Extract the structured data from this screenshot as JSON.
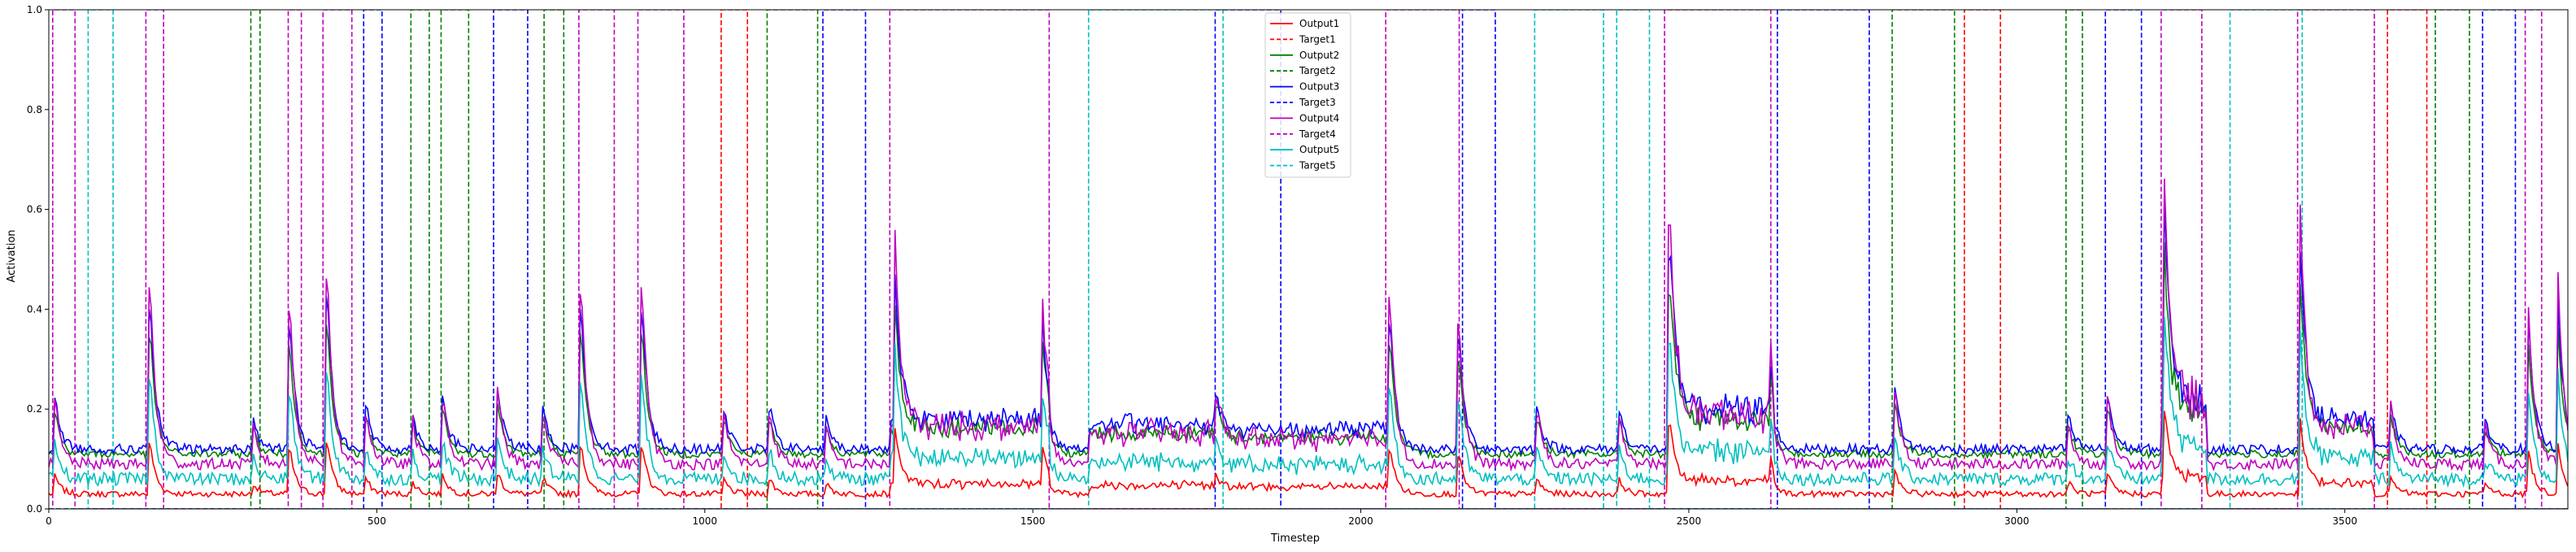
{
  "chart_data": {
    "type": "line",
    "title": "",
    "xlabel": "Timestep",
    "ylabel": "Activation",
    "xlim": [
      0,
      3840
    ],
    "ylim": [
      0.0,
      1.0
    ],
    "xticks": [
      0,
      500,
      1000,
      1500,
      2000,
      2500,
      3000,
      3500
    ],
    "yticks": [
      0.0,
      0.2,
      0.4,
      0.6,
      0.8,
      1.0
    ],
    "grid": false,
    "legend_position": "upper center",
    "legend": [
      "Output1",
      "Target1",
      "Output2",
      "Target2",
      "Output3",
      "Target3",
      "Output4",
      "Target4",
      "Output5",
      "Target5"
    ],
    "colors": {
      "series1": "#ff0000",
      "series2": "#008000",
      "series3": "#0000ff",
      "series4": "#bf00bf",
      "series5": "#00bfbf"
    },
    "target_intervals": {
      "Target1": [
        [
          1025,
          1065
        ],
        [
          2920,
          2975
        ],
        [
          3565,
          3625
        ]
      ],
      "Target2": [
        [
          308,
          322
        ],
        [
          552,
          580
        ],
        [
          598,
          640
        ],
        [
          755,
          785
        ],
        [
          1095,
          1172
        ],
        [
          2810,
          2905
        ],
        [
          3075,
          3100
        ],
        [
          3638,
          3690
        ]
      ],
      "Target3": [
        [
          480,
          508
        ],
        [
          678,
          730
        ],
        [
          1180,
          1245
        ],
        [
          1778,
          1878
        ],
        [
          2155,
          2205
        ],
        [
          2635,
          2775
        ],
        [
          3135,
          3190
        ],
        [
          3710,
          3760
        ]
      ],
      "Target4": [
        [
          6,
          40
        ],
        [
          148,
          175
        ],
        [
          365,
          385
        ],
        [
          418,
          462
        ],
        [
          808,
          862
        ],
        [
          898,
          968
        ],
        [
          1282,
          1525
        ],
        [
          2038,
          2150
        ],
        [
          2463,
          2625
        ],
        [
          3220,
          3282
        ],
        [
          3428,
          3545
        ],
        [
          3775,
          3800
        ]
      ],
      "Target5": [
        [
          60,
          98
        ],
        [
          1585,
          1790
        ],
        [
          2265,
          2370
        ],
        [
          2390,
          2440
        ],
        [
          3325,
          3435
        ]
      ]
    },
    "output_levels": {
      "Output1": 0.03,
      "Output2": 0.11,
      "Output3": 0.12,
      "Output4": 0.09,
      "Output5": 0.06
    },
    "spikes": [
      {
        "x": 10,
        "h": 0.1
      },
      {
        "x": 155,
        "h": 0.28
      },
      {
        "x": 312,
        "h": 0.06
      },
      {
        "x": 368,
        "h": 0.25
      },
      {
        "x": 425,
        "h": 0.3
      },
      {
        "x": 485,
        "h": 0.08
      },
      {
        "x": 555,
        "h": 0.07
      },
      {
        "x": 602,
        "h": 0.1
      },
      {
        "x": 685,
        "h": 0.12
      },
      {
        "x": 755,
        "h": 0.08
      },
      {
        "x": 812,
        "h": 0.28
      },
      {
        "x": 905,
        "h": 0.28
      },
      {
        "x": 1030,
        "h": 0.08
      },
      {
        "x": 1100,
        "h": 0.08
      },
      {
        "x": 1185,
        "h": 0.06
      },
      {
        "x": 1290,
        "h": 0.3
      },
      {
        "x": 1515,
        "h": 0.2
      },
      {
        "x": 1780,
        "h": 0.06
      },
      {
        "x": 2045,
        "h": 0.26
      },
      {
        "x": 2150,
        "h": 0.22
      },
      {
        "x": 2270,
        "h": 0.08
      },
      {
        "x": 2395,
        "h": 0.08
      },
      {
        "x": 2470,
        "h": 0.38
      },
      {
        "x": 2625,
        "h": 0.1
      },
      {
        "x": 2815,
        "h": 0.12
      },
      {
        "x": 3080,
        "h": 0.06
      },
      {
        "x": 3140,
        "h": 0.1
      },
      {
        "x": 3225,
        "h": 0.38
      },
      {
        "x": 3432,
        "h": 0.35
      },
      {
        "x": 3570,
        "h": 0.1
      },
      {
        "x": 3715,
        "h": 0.06
      },
      {
        "x": 3780,
        "h": 0.26
      },
      {
        "x": 3825,
        "h": 0.3
      }
    ],
    "elevated_regions": [
      {
        "x": [
          1282,
          1525
        ],
        "boost": 0.06
      },
      {
        "x": [
          1585,
          1790
        ],
        "boost": 0.05
      },
      {
        "x": [
          1790,
          2040
        ],
        "boost": 0.04
      },
      {
        "x": [
          2470,
          2630
        ],
        "boost": 0.08
      },
      {
        "x": [
          3220,
          3290
        ],
        "boost": 0.1
      },
      {
        "x": [
          3430,
          3545
        ],
        "boost": 0.06
      }
    ]
  }
}
